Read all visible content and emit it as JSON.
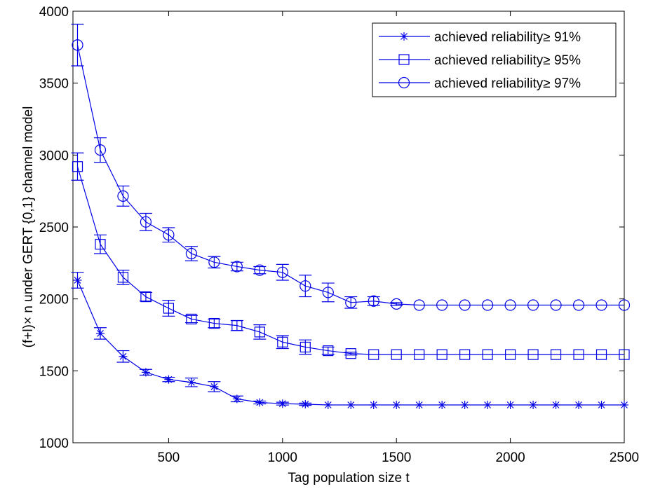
{
  "chart_data": {
    "type": "line",
    "xlabel": "Tag population size t",
    "ylabel": "(f+l)× n under GERT {0,1} channel model",
    "xlim": [
      80,
      2500
    ],
    "ylim": [
      1000,
      4000
    ],
    "xticks": [
      500,
      1000,
      1500,
      2000,
      2500
    ],
    "yticks": [
      1000,
      1500,
      2000,
      2500,
      3000,
      3500,
      4000
    ],
    "grid": false,
    "legend_position": "top-right",
    "line_color": "#0000e6",
    "x": [
      100,
      200,
      300,
      400,
      500,
      600,
      700,
      800,
      900,
      1000,
      1100,
      1200,
      1300,
      1400,
      1500,
      1600,
      1700,
      1800,
      1900,
      2000,
      2100,
      2200,
      2300,
      2400,
      2500
    ],
    "series": [
      {
        "name": "achieved reliability≥ 91%",
        "marker": "star",
        "values": [
          2130,
          1760,
          1600,
          1490,
          1440,
          1420,
          1390,
          1305,
          1280,
          1272,
          1268,
          1263,
          1263,
          1263,
          1263,
          1263,
          1263,
          1263,
          1263,
          1263,
          1263,
          1263,
          1263,
          1263,
          1263
        ],
        "errors": [
          55,
          40,
          40,
          20,
          15,
          30,
          35,
          20,
          10,
          10,
          8,
          0,
          0,
          0,
          0,
          0,
          0,
          0,
          0,
          0,
          0,
          0,
          0,
          0,
          0
        ]
      },
      {
        "name": "achieved reliability≥ 95%",
        "marker": "square",
        "values": [
          2920,
          2380,
          2150,
          2015,
          1935,
          1860,
          1830,
          1815,
          1770,
          1700,
          1665,
          1640,
          1620,
          1613,
          1613,
          1613,
          1613,
          1613,
          1613,
          1613,
          1613,
          1613,
          1613,
          1613,
          1613
        ],
        "errors": [
          95,
          65,
          50,
          30,
          55,
          25,
          30,
          35,
          50,
          45,
          50,
          25,
          10,
          0,
          0,
          0,
          0,
          0,
          0,
          0,
          0,
          0,
          0,
          0,
          0
        ]
      },
      {
        "name": "achieved reliability≥ 97%",
        "marker": "circle",
        "values": [
          3765,
          3035,
          2715,
          2535,
          2445,
          2315,
          2255,
          2225,
          2200,
          2185,
          2090,
          2045,
          1975,
          1985,
          1965,
          1957,
          1957,
          1957,
          1957,
          1957,
          1957,
          1957,
          1957,
          1957,
          1957
        ],
        "errors": [
          145,
          85,
          70,
          60,
          50,
          50,
          40,
          30,
          25,
          55,
          75,
          65,
          40,
          30,
          10,
          0,
          0,
          0,
          0,
          0,
          0,
          0,
          0,
          0,
          0
        ]
      }
    ]
  }
}
